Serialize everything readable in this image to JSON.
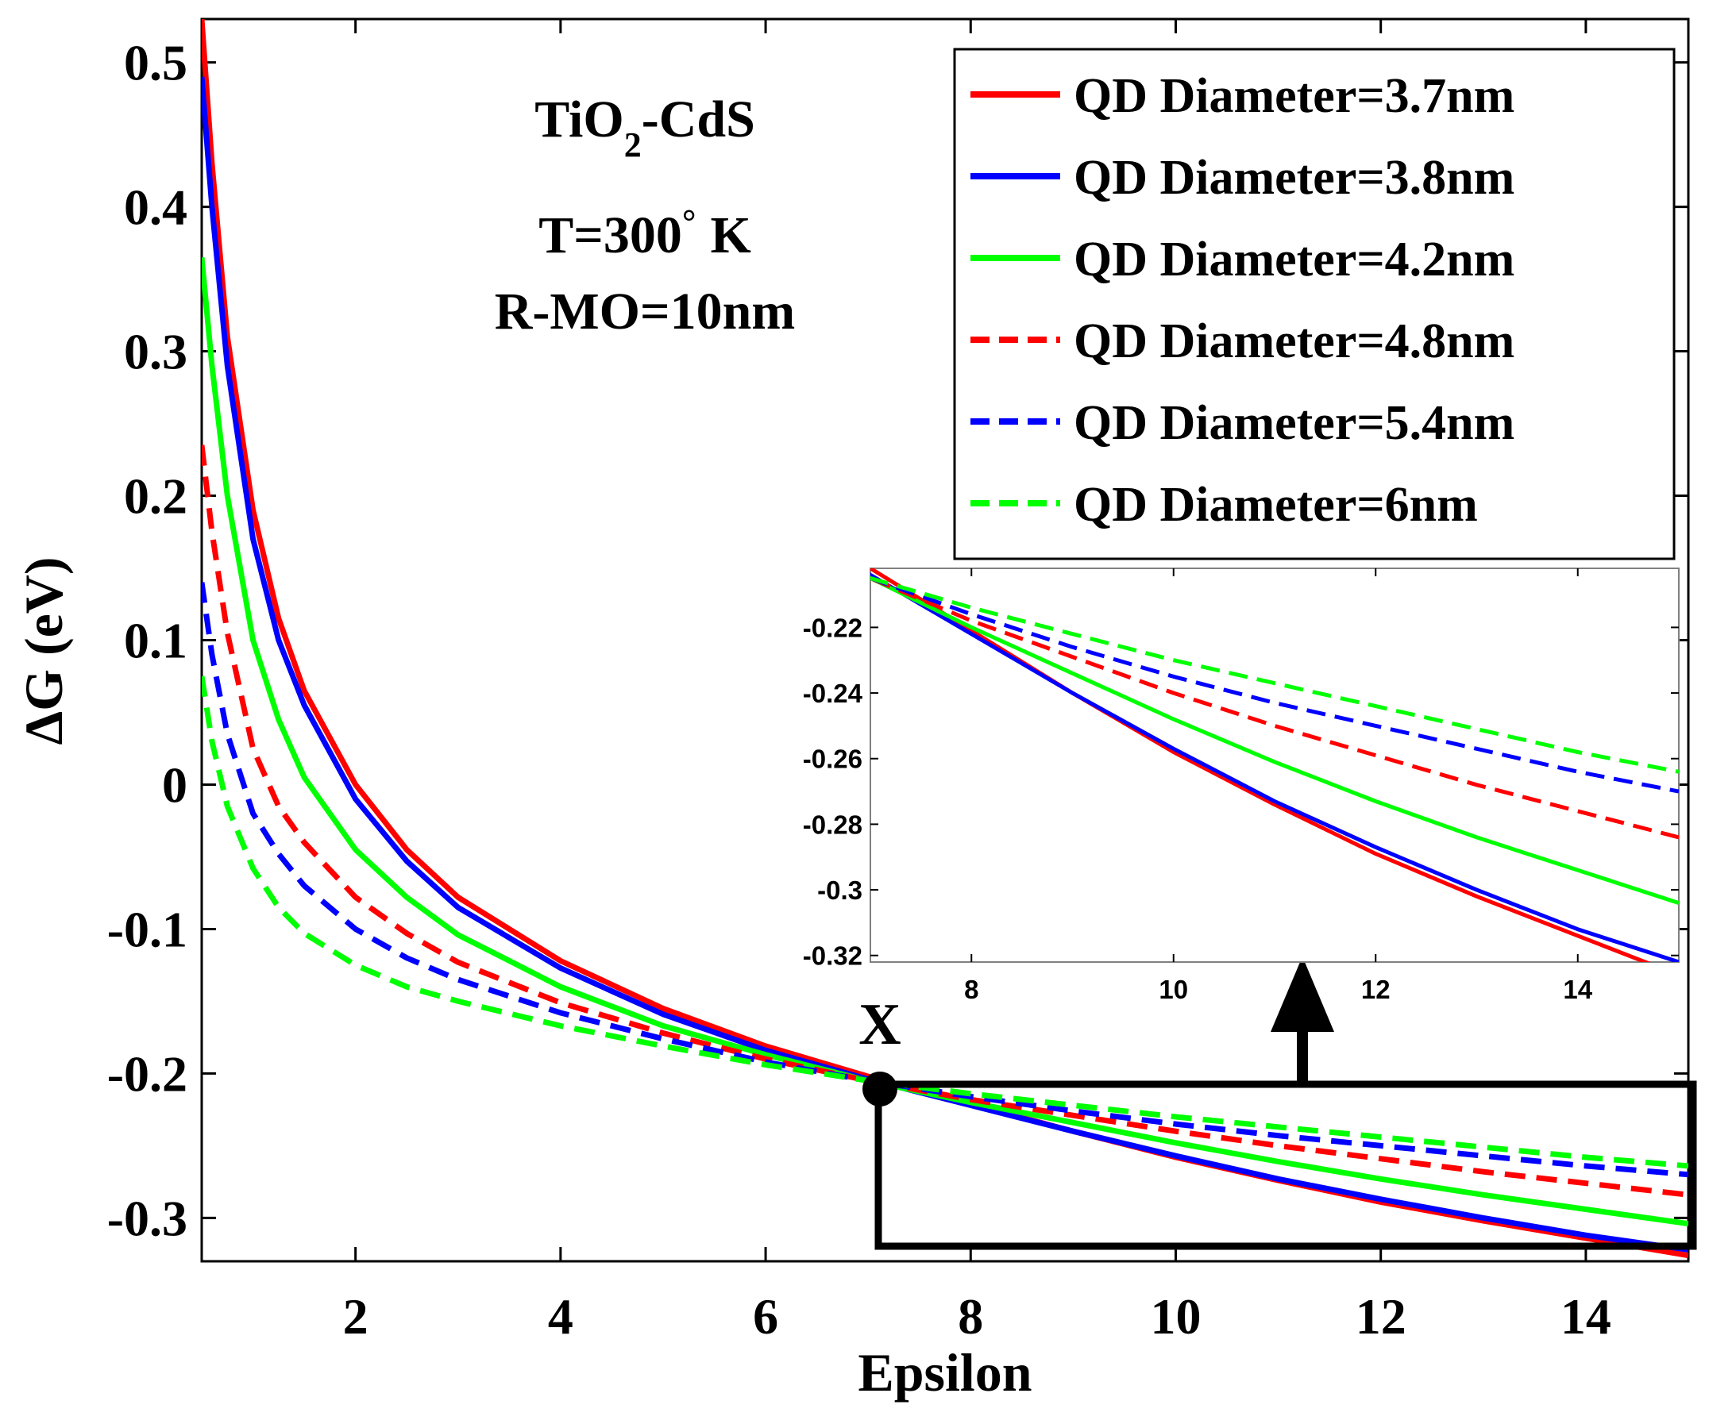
{
  "chart_data": [
    {
      "type": "line",
      "title": "",
      "xlabel": "Epsilon",
      "ylabel": "ΔG (eV)",
      "xlim": [
        0.5,
        15
      ],
      "ylim": [
        -0.33,
        0.53
      ],
      "xticks": [
        "2",
        "4",
        "6",
        "8",
        "10",
        "12",
        "14"
      ],
      "yticks": [
        "0.5",
        "0.4",
        "0.3",
        "0.2",
        "0.1",
        "0",
        "-0.1",
        "-0.2",
        "-0.3"
      ],
      "grid": false,
      "legend_position": "top-right",
      "annotations": {
        "material_main": "TiO",
        "material_sub": "2",
        "material_rest": "-CdS",
        "temperature_main": "T=300",
        "temperature_sup": "°",
        "temperature_unit": "K",
        "radius": "R-MO=10nm",
        "point_label": "X"
      },
      "crossing_point": {
        "x": 7.1,
        "y": -0.207
      },
      "zoom_box": {
        "x": [
          7.1,
          15.0
        ],
        "y": [
          -0.32,
          -0.205
        ]
      },
      "series": [
        {
          "name": "QD Diameter=3.7nm",
          "color": "#ff0000",
          "dash": "solid",
          "x": [
            0.5,
            0.6,
            0.75,
            1,
            1.25,
            1.5,
            2,
            2.5,
            3,
            4,
            5,
            6,
            7,
            8,
            9,
            10,
            11,
            12,
            13,
            14,
            15
          ],
          "y": [
            0.53,
            0.43,
            0.31,
            0.19,
            0.115,
            0.065,
            0.0,
            -0.045,
            -0.078,
            -0.122,
            -0.155,
            -0.181,
            -0.202,
            -0.221,
            -0.24,
            -0.258,
            -0.274,
            -0.289,
            -0.302,
            -0.314,
            -0.326
          ]
        },
        {
          "name": "QD Diameter=3.8nm",
          "color": "#0000ff",
          "dash": "solid",
          "x": [
            0.5,
            0.6,
            0.75,
            1,
            1.25,
            1.5,
            2,
            2.5,
            3,
            4,
            5,
            6,
            7,
            8,
            9,
            10,
            11,
            12,
            13,
            14,
            15
          ],
          "y": [
            0.49,
            0.4,
            0.29,
            0.17,
            0.1,
            0.055,
            -0.01,
            -0.053,
            -0.085,
            -0.127,
            -0.159,
            -0.184,
            -0.204,
            -0.222,
            -0.24,
            -0.257,
            -0.273,
            -0.287,
            -0.3,
            -0.312,
            -0.322
          ]
        },
        {
          "name": "QD Diameter=4.2nm",
          "color": "#00ff00",
          "dash": "solid",
          "x": [
            0.5,
            0.6,
            0.75,
            1,
            1.25,
            1.5,
            2,
            2.5,
            3,
            4,
            5,
            6,
            7,
            8,
            9,
            10,
            11,
            12,
            13,
            14,
            15
          ],
          "y": [
            0.365,
            0.29,
            0.2,
            0.1,
            0.045,
            0.005,
            -0.045,
            -0.078,
            -0.104,
            -0.14,
            -0.167,
            -0.187,
            -0.205,
            -0.22,
            -0.234,
            -0.248,
            -0.261,
            -0.273,
            -0.284,
            -0.294,
            -0.304
          ]
        },
        {
          "name": "QD Diameter=4.8nm",
          "color": "#ff0000",
          "dash": "dashed",
          "x": [
            0.5,
            0.6,
            0.75,
            1,
            1.25,
            1.5,
            2,
            2.5,
            3,
            4,
            5,
            6,
            7,
            8,
            9,
            10,
            11,
            12,
            13,
            14,
            15
          ],
          "y": [
            0.235,
            0.175,
            0.105,
            0.025,
            -0.015,
            -0.04,
            -0.078,
            -0.103,
            -0.123,
            -0.151,
            -0.172,
            -0.19,
            -0.205,
            -0.218,
            -0.229,
            -0.24,
            -0.25,
            -0.259,
            -0.268,
            -0.276,
            -0.284
          ]
        },
        {
          "name": "QD Diameter=5.4nm",
          "color": "#0000ff",
          "dash": "dashed",
          "x": [
            0.5,
            0.6,
            0.75,
            1,
            1.25,
            1.5,
            2,
            2.5,
            3,
            4,
            5,
            6,
            7,
            8,
            9,
            10,
            11,
            12,
            13,
            14,
            15
          ],
          "y": [
            0.14,
            0.09,
            0.035,
            -0.02,
            -0.048,
            -0.07,
            -0.1,
            -0.12,
            -0.135,
            -0.158,
            -0.176,
            -0.192,
            -0.205,
            -0.216,
            -0.226,
            -0.235,
            -0.243,
            -0.25,
            -0.257,
            -0.264,
            -0.27
          ]
        },
        {
          "name": "QD Diameter=6nm",
          "color": "#00ff00",
          "dash": "dashed",
          "x": [
            0.5,
            0.6,
            0.75,
            1,
            1.25,
            1.5,
            2,
            2.5,
            3,
            4,
            5,
            6,
            7,
            8,
            9,
            10,
            11,
            12,
            13,
            14,
            15
          ],
          "y": [
            0.075,
            0.03,
            -0.015,
            -0.058,
            -0.085,
            -0.103,
            -0.125,
            -0.14,
            -0.15,
            -0.167,
            -0.181,
            -0.194,
            -0.205,
            -0.214,
            -0.222,
            -0.23,
            -0.237,
            -0.244,
            -0.251,
            -0.258,
            -0.264
          ]
        }
      ]
    },
    {
      "type": "line",
      "title": "",
      "xlabel": "",
      "ylabel": "",
      "xlim": [
        7.0,
        15.0
      ],
      "ylim": [
        -0.322,
        -0.202
      ],
      "xticks": [
        "8",
        "10",
        "12",
        "14"
      ],
      "yticks": [
        "-0.22",
        "-0.24",
        "-0.26",
        "-0.28",
        "-0.3",
        "-0.32"
      ],
      "grid": false,
      "series_ref": "same series as main plot, zoomed"
    }
  ]
}
